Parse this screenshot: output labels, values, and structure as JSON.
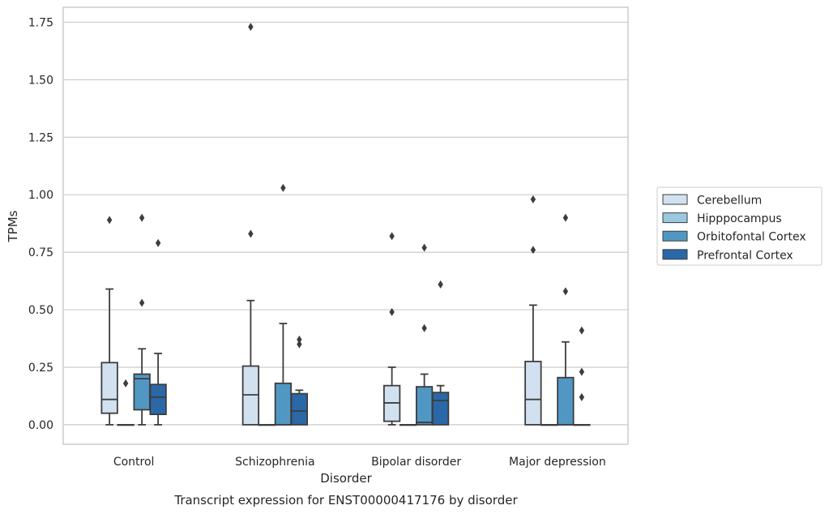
{
  "chart_data": {
    "type": "box",
    "title": "Transcript expression for ENST00000417176 by disorder",
    "xlabel": "Disorder",
    "ylabel": "TPMs",
    "ylim": [
      -0.085,
      1.815
    ],
    "yticks": [
      0.0,
      0.25,
      0.5,
      0.75,
      1.0,
      1.25,
      1.5,
      1.75
    ],
    "ytick_labels": [
      "0.00",
      "0.25",
      "0.50",
      "0.75",
      "1.00",
      "1.25",
      "1.50",
      "1.75"
    ],
    "grid": true,
    "legend_position": "right",
    "categories": [
      "Control",
      "Schizophrenia",
      "Bipolar disorder",
      "Major depression"
    ],
    "series": [
      {
        "name": "Cerebellum",
        "color": "#d2e1f0",
        "boxes": [
          {
            "q1": 0.05,
            "median": 0.11,
            "q3": 0.27,
            "whisker_low": 0.0,
            "whisker_high": 0.59,
            "outliers": [
              0.89
            ]
          },
          {
            "q1": 0.0,
            "median": 0.13,
            "q3": 0.255,
            "whisker_low": 0.0,
            "whisker_high": 0.54,
            "outliers": [
              0.83,
              1.73
            ]
          },
          {
            "q1": 0.015,
            "median": 0.095,
            "q3": 0.17,
            "whisker_low": 0.0,
            "whisker_high": 0.25,
            "outliers": [
              0.49,
              0.82
            ]
          },
          {
            "q1": 0.0,
            "median": 0.11,
            "q3": 0.275,
            "whisker_low": 0.0,
            "whisker_high": 0.52,
            "outliers": [
              0.76,
              0.98
            ]
          }
        ]
      },
      {
        "name": "Hipppocampus",
        "color": "#9ac8e0",
        "boxes": [
          {
            "q1": 0.0,
            "median": 0.0,
            "q3": 0.0,
            "whisker_low": 0.0,
            "whisker_high": 0.0,
            "outliers": [
              0.18
            ]
          },
          {
            "q1": 0.0,
            "median": 0.0,
            "q3": 0.0,
            "whisker_low": 0.0,
            "whisker_high": 0.0,
            "outliers": []
          },
          {
            "q1": 0.0,
            "median": 0.0,
            "q3": 0.0,
            "whisker_low": 0.0,
            "whisker_high": 0.0,
            "outliers": []
          },
          {
            "q1": 0.0,
            "median": 0.0,
            "q3": 0.0,
            "whisker_low": 0.0,
            "whisker_high": 0.0,
            "outliers": []
          }
        ]
      },
      {
        "name": "Orbitofontal Cortex",
        "color": "#5197c4",
        "boxes": [
          {
            "q1": 0.065,
            "median": 0.2,
            "q3": 0.22,
            "whisker_low": 0.0,
            "whisker_high": 0.33,
            "outliers": [
              0.53,
              0.9
            ]
          },
          {
            "q1": 0.0,
            "median": 0.0,
            "q3": 0.18,
            "whisker_low": 0.0,
            "whisker_high": 0.44,
            "outliers": [
              1.03
            ]
          },
          {
            "q1": 0.0,
            "median": 0.01,
            "q3": 0.165,
            "whisker_low": 0.0,
            "whisker_high": 0.22,
            "outliers": [
              0.42,
              0.77
            ]
          },
          {
            "q1": 0.0,
            "median": 0.0,
            "q3": 0.205,
            "whisker_low": 0.0,
            "whisker_high": 0.36,
            "outliers": [
              0.58,
              0.9
            ]
          }
        ]
      },
      {
        "name": "Prefrontal Cortex",
        "color": "#2a68a8",
        "boxes": [
          {
            "q1": 0.045,
            "median": 0.12,
            "q3": 0.175,
            "whisker_low": 0.0,
            "whisker_high": 0.31,
            "outliers": [
              0.79
            ]
          },
          {
            "q1": 0.0,
            "median": 0.06,
            "q3": 0.135,
            "whisker_low": 0.0,
            "whisker_high": 0.15,
            "outliers": [
              0.35,
              0.37
            ]
          },
          {
            "q1": 0.0,
            "median": 0.105,
            "q3": 0.14,
            "whisker_low": 0.0,
            "whisker_high": 0.17,
            "outliers": [
              0.61
            ]
          },
          {
            "q1": 0.0,
            "median": 0.0,
            "q3": 0.0,
            "whisker_low": 0.0,
            "whisker_high": 0.0,
            "outliers": [
              0.12,
              0.23,
              0.41
            ]
          }
        ]
      }
    ]
  }
}
